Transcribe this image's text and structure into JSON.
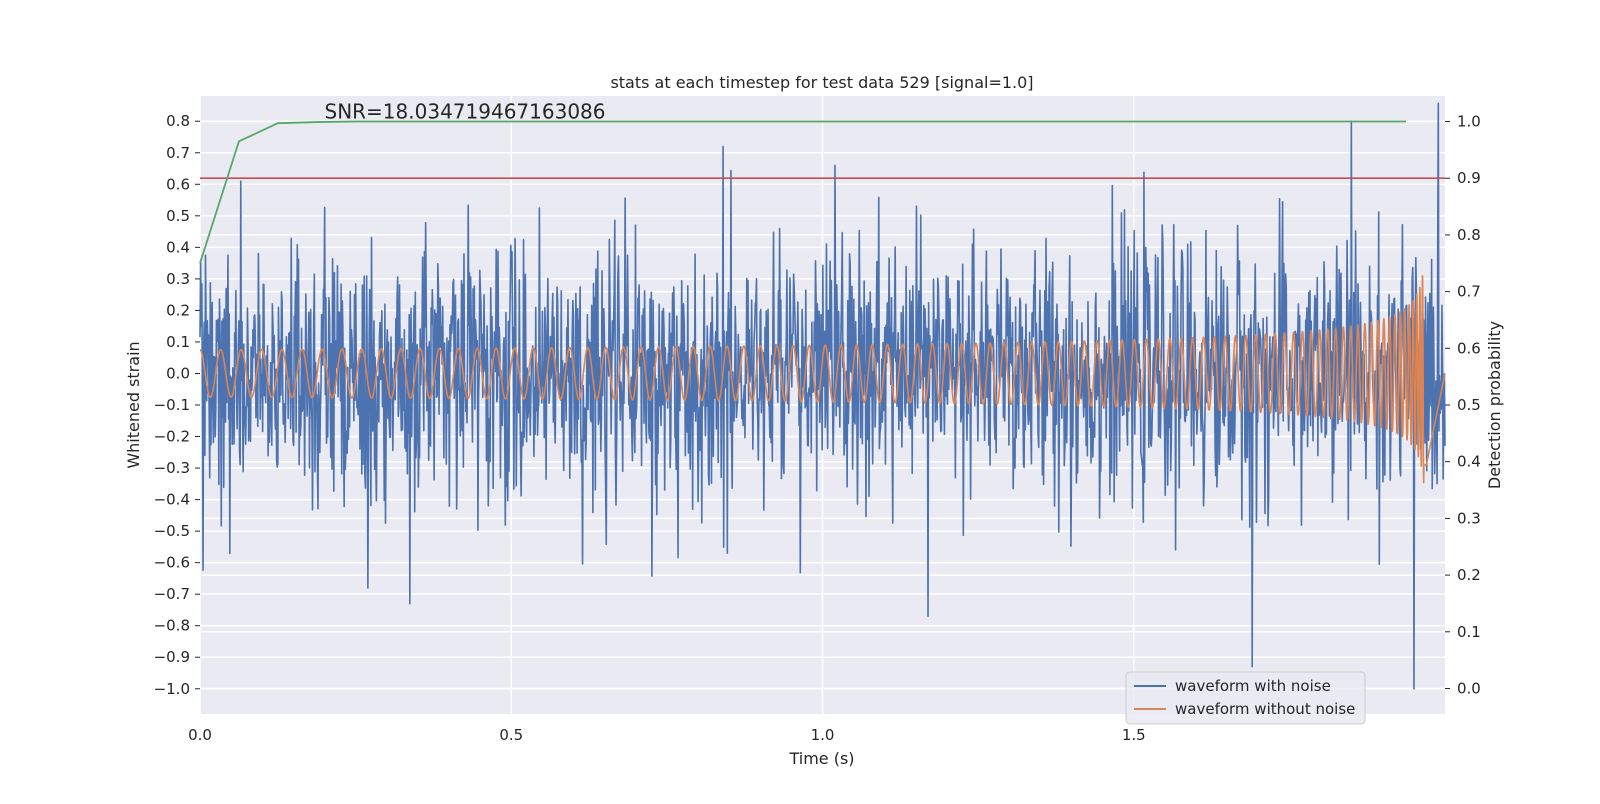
{
  "chart_data": {
    "type": "line",
    "title": "stats at each timestep for test data 529 [signal=1.0]",
    "xlabel": "Time (s)",
    "ylabel": "Whitened strain",
    "y2label": "Detection probability",
    "xlim": [
      0.0,
      2.0
    ],
    "ylim": [
      -1.08,
      0.88
    ],
    "y2lim": [
      -0.045,
      1.045
    ],
    "xticks": [
      0.0,
      0.5,
      1.0,
      1.5
    ],
    "xtick_labels": [
      "0.0",
      "0.5",
      "1.0",
      "1.5"
    ],
    "yticks": [
      -1.0,
      -0.9,
      -0.8,
      -0.7,
      -0.6,
      -0.5,
      -0.4,
      -0.3,
      -0.2,
      -0.1,
      0.0,
      0.1,
      0.2,
      0.3,
      0.4,
      0.5,
      0.6,
      0.7,
      0.8
    ],
    "ytick_labels": [
      "−1.0",
      "−0.9",
      "−0.8",
      "−0.7",
      "−0.6",
      "−0.5",
      "−0.4",
      "−0.3",
      "−0.2",
      "−0.1",
      "0.0",
      "0.1",
      "0.2",
      "0.3",
      "0.4",
      "0.5",
      "0.6",
      "0.7",
      "0.8"
    ],
    "y2ticks": [
      0.0,
      0.1,
      0.2,
      0.3,
      0.4,
      0.5,
      0.6,
      0.7,
      0.8,
      0.9,
      1.0
    ],
    "y2tick_labels": [
      "0.0",
      "0.1",
      "0.2",
      "0.3",
      "0.4",
      "0.5",
      "0.6",
      "0.7",
      "0.8",
      "0.9",
      "1.0"
    ],
    "grid": true,
    "legend_placement": "lower-right",
    "annotation": {
      "text": "SNR=18.034719467163086",
      "x": 0.2,
      "y": 1.0,
      "axis": "y2"
    },
    "threshold": {
      "value": 0.9,
      "axis": "y2",
      "color": "#c44e52"
    },
    "series": [
      {
        "name": "waveform with noise",
        "axis": "y",
        "color": "#4c72b0",
        "kind": "noisy-strain",
        "x_range": [
          0.0,
          2.0
        ],
        "n_points": 2048,
        "amplitude_std": 0.2,
        "notable_points": [
          {
            "x": 0.065,
            "y": 0.61
          },
          {
            "x": 0.27,
            "y": -0.68
          },
          {
            "x": 0.84,
            "y": 0.72
          },
          {
            "x": 1.02,
            "y": 0.66
          },
          {
            "x": 1.17,
            "y": -0.77
          },
          {
            "x": 1.69,
            "y": -0.93
          },
          {
            "x": 1.85,
            "y": 0.8
          },
          {
            "x": 1.95,
            "y": -1.0
          }
        ]
      },
      {
        "name": "waveform without noise",
        "axis": "y",
        "color": "#dd8452",
        "kind": "chirp",
        "x_range": [
          0.0,
          1.97
        ],
        "merger_time": 1.97,
        "initial_amplitude": 0.075,
        "peak_amplitude": 0.41,
        "initial_frequency_hz": 30,
        "after_merger": {
          "x_end": 2.0,
          "y": 0.0
        }
      },
      {
        "name": "detection probability",
        "axis": "y2",
        "color": "#55a868",
        "x": [
          0.0,
          0.0625,
          0.125,
          0.1875,
          0.25,
          0.5,
          0.75,
          1.0,
          1.25,
          1.5,
          1.75,
          1.9375
        ],
        "y": [
          0.75,
          0.965,
          0.997,
          0.999,
          1.0,
          1.0,
          1.0,
          1.0,
          1.0,
          1.0,
          1.0,
          1.0
        ]
      }
    ]
  }
}
